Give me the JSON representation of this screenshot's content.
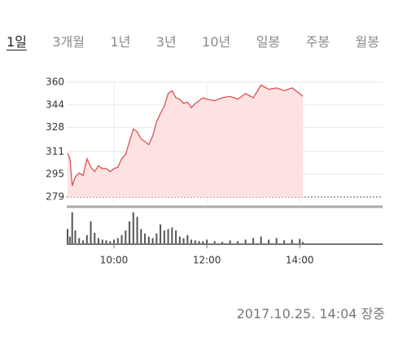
{
  "tabs": [
    "1일",
    "3개월",
    "1년",
    "3년",
    "10년",
    "일봉",
    "주봉",
    "월봉"
  ],
  "selected_tab": 0,
  "chart_data": [
    {
      "type": "line",
      "x": [
        "09:00",
        "09:03",
        "09:06",
        "09:10",
        "09:15",
        "09:20",
        "09:25",
        "09:30",
        "09:35",
        "09:40",
        "09:45",
        "09:50",
        "09:55",
        "10:00",
        "10:05",
        "10:10",
        "10:15",
        "10:20",
        "10:25",
        "10:30",
        "10:35",
        "10:40",
        "10:45",
        "10:50",
        "10:55",
        "11:00",
        "11:05",
        "11:10",
        "11:15",
        "11:20",
        "11:25",
        "11:30",
        "11:35",
        "11:40",
        "11:45",
        "11:50",
        "11:55",
        "12:00",
        "12:10",
        "12:20",
        "12:30",
        "12:40",
        "12:50",
        "13:00",
        "13:10",
        "13:20",
        "13:30",
        "13:40",
        "13:50",
        "14:00",
        "14:04"
      ],
      "series": [
        {
          "color": "#d9534f",
          "fill": "#fde2e4",
          "values": [
            310,
            306,
            287,
            293,
            296,
            294,
            306,
            300,
            297,
            301,
            299,
            299,
            297,
            299,
            300,
            306,
            309,
            318,
            327,
            325,
            320,
            318,
            316,
            322,
            332,
            338,
            343,
            352,
            354,
            349,
            348,
            345,
            346,
            342,
            345,
            347,
            349,
            348,
            347,
            349,
            350,
            348,
            352,
            349,
            358,
            355,
            356,
            354,
            356,
            352,
            350
          ]
        }
      ],
      "xlim": [
        "09:00",
        "15:45"
      ],
      "ylim": [
        279,
        360
      ],
      "yticks": [
        279,
        295,
        311,
        328,
        344,
        360
      ],
      "grid": true
    },
    {
      "type": "bar",
      "x": [
        "09:00",
        "09:03",
        "09:06",
        "09:10",
        "09:15",
        "09:20",
        "09:25",
        "09:30",
        "09:35",
        "09:40",
        "09:45",
        "09:50",
        "09:55",
        "10:00",
        "10:05",
        "10:10",
        "10:15",
        "10:20",
        "10:25",
        "10:30",
        "10:35",
        "10:40",
        "10:45",
        "10:50",
        "10:55",
        "11:00",
        "11:05",
        "11:10",
        "11:15",
        "11:20",
        "11:25",
        "11:30",
        "11:35",
        "11:40",
        "11:45",
        "11:50",
        "11:55",
        "12:00",
        "12:10",
        "12:20",
        "12:30",
        "12:40",
        "12:50",
        "13:00",
        "13:10",
        "13:20",
        "13:30",
        "13:40",
        "13:50",
        "14:00",
        "14:04"
      ],
      "values": [
        20,
        10,
        42,
        18,
        8,
        5,
        12,
        30,
        15,
        8,
        6,
        5,
        4,
        6,
        8,
        12,
        18,
        30,
        42,
        36,
        20,
        14,
        10,
        8,
        14,
        26,
        18,
        20,
        22,
        18,
        10,
        8,
        12,
        6,
        5,
        4,
        4,
        6,
        4,
        3,
        5,
        4,
        6,
        8,
        10,
        6,
        8,
        5,
        6,
        7,
        3
      ],
      "color": "#555555",
      "xlim": [
        "09:00",
        "15:45"
      ],
      "ylim": [
        0,
        45
      ],
      "xticks": [
        "10:00",
        "12:00",
        "14:00"
      ]
    }
  ],
  "status": "2017.10.25. 14:04 장중"
}
